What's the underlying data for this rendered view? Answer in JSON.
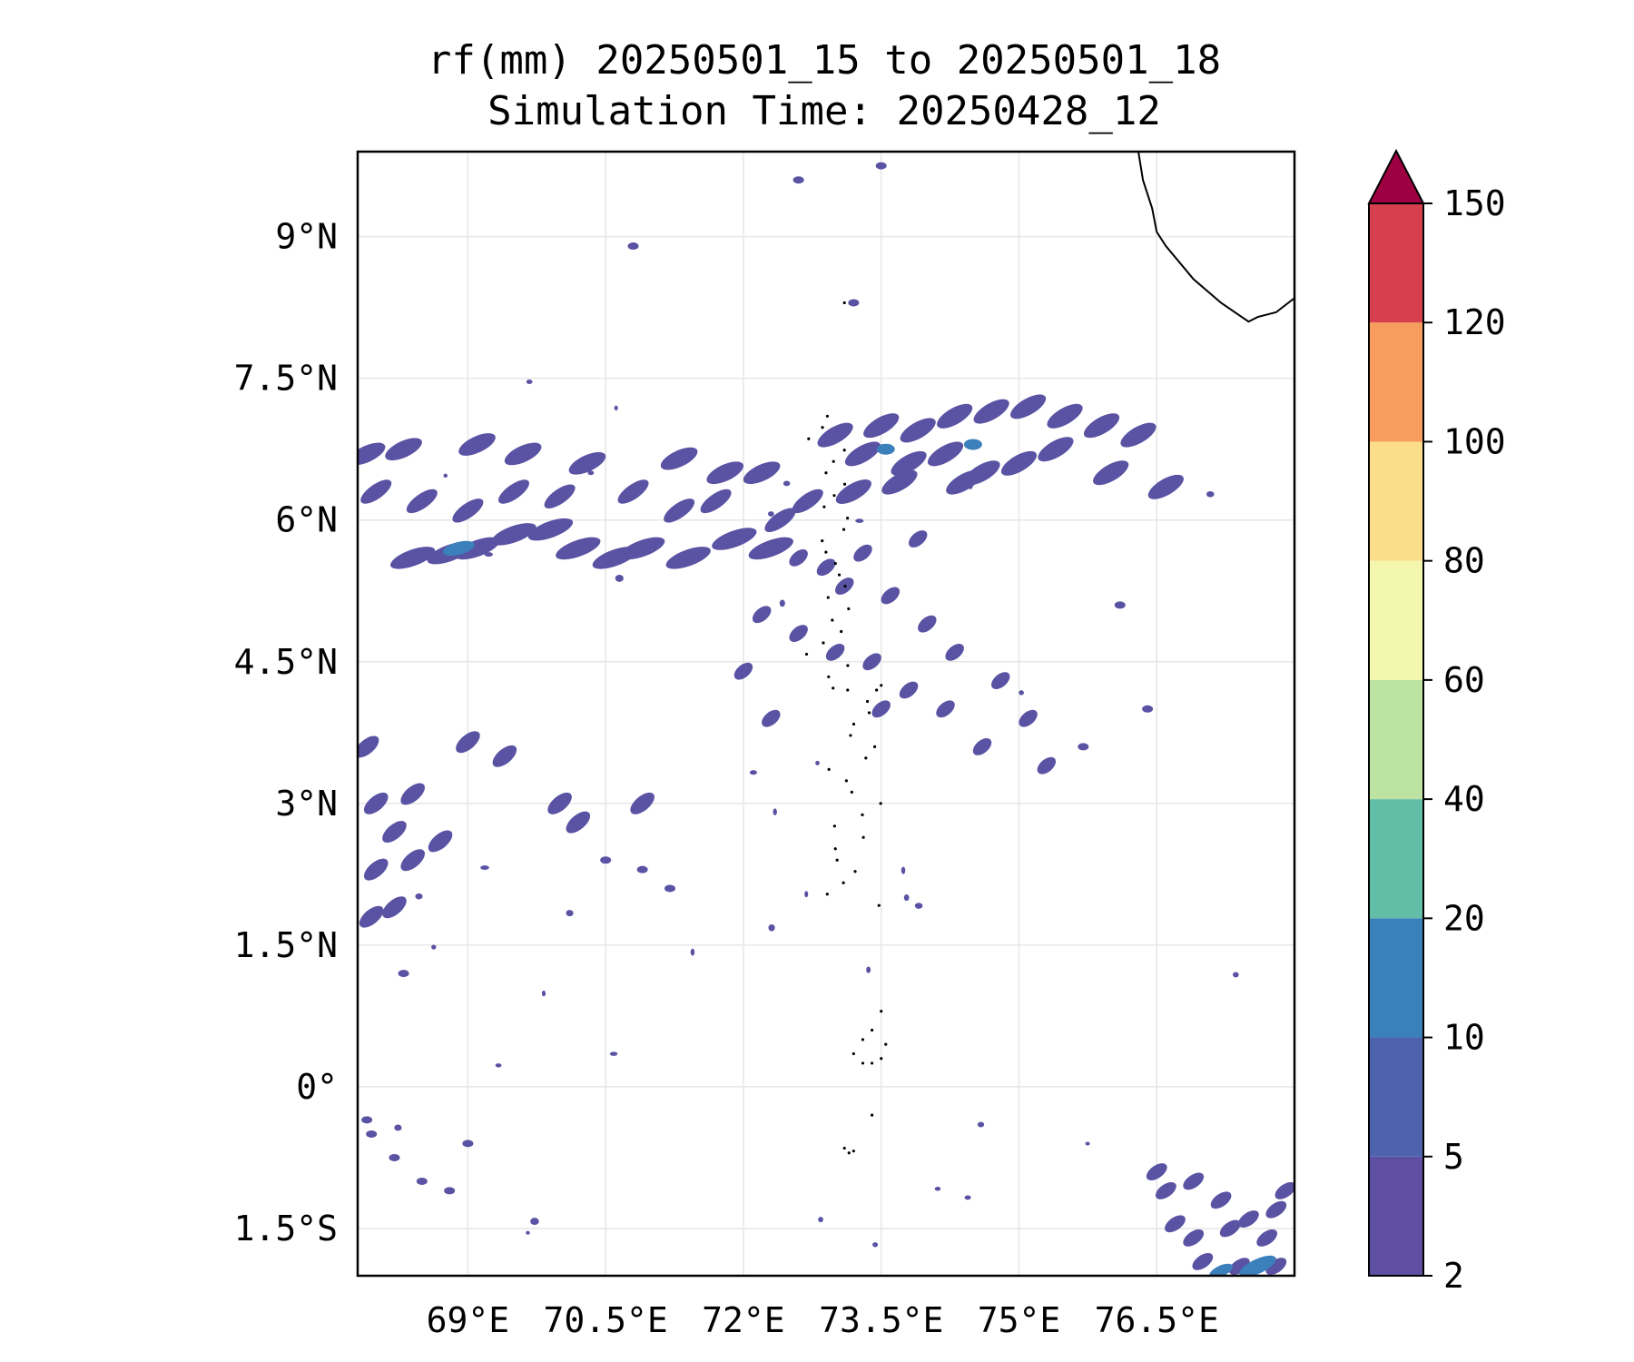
{
  "title": {
    "line1": "rf(mm) 20250501_15 to 20250501_18",
    "line2": "Simulation Time: 20250428_12"
  },
  "map": {
    "lon_range": [
      67.8,
      78.0
    ],
    "lat_range": [
      -2.0,
      9.9
    ],
    "x_ticks": [
      {
        "value": 69,
        "label": "69°E"
      },
      {
        "value": 70.5,
        "label": "70.5°E"
      },
      {
        "value": 72,
        "label": "72°E"
      },
      {
        "value": 73.5,
        "label": "73.5°E"
      },
      {
        "value": 75,
        "label": "75°E"
      },
      {
        "value": 76.5,
        "label": "76.5°E"
      }
    ],
    "y_ticks": [
      {
        "value": 9,
        "label": "9°N"
      },
      {
        "value": 7.5,
        "label": "7.5°N"
      },
      {
        "value": 6,
        "label": "6°N"
      },
      {
        "value": 4.5,
        "label": "4.5°N"
      },
      {
        "value": 3,
        "label": "3°N"
      },
      {
        "value": 1.5,
        "label": "1.5°N"
      },
      {
        "value": 0,
        "label": "0°"
      },
      {
        "value": -1.5,
        "label": "1.5°S"
      }
    ],
    "gridlines": true,
    "rain_color": "#5a52a3",
    "rain_color_heavy": "#3b7fbb"
  },
  "colorbar": {
    "levels": [
      "2",
      "5",
      "10",
      "20",
      "40",
      "60",
      "80",
      "100",
      "120",
      "150"
    ],
    "colors": [
      "#5e4fa2",
      "#4e63ad",
      "#3a80ba",
      "#63bea8",
      "#bde3a2",
      "#f3f8ae",
      "#fbde8a",
      "#f79d5d",
      "#d6404e",
      "#9e0142"
    ],
    "extend": "max"
  }
}
